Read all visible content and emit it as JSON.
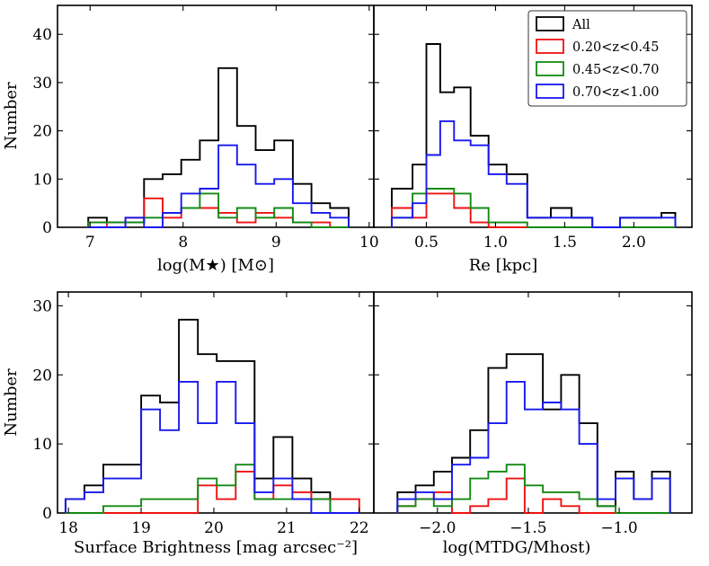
{
  "colors": {
    "All": "#000000",
    "low": "#ee1111",
    "mid": "#138a13",
    "high": "#1818ee"
  },
  "legend": [
    {
      "key": "All",
      "label": "All"
    },
    {
      "key": "low",
      "label": "0.20<z<0.45"
    },
    {
      "key": "mid",
      "label": "0.45<z<0.70"
    },
    {
      "key": "high",
      "label": "0.70<z<1.00"
    }
  ],
  "chart_data": [
    {
      "type": "histogram",
      "panel": "top-left",
      "xlabel": "log(M★) [M⊙]",
      "ylabel": "Number",
      "xlim": [
        6.65,
        10.05
      ],
      "ylim": [
        0,
        46
      ],
      "xticks": [
        7,
        8,
        9,
        10
      ],
      "yticks": [
        0,
        10,
        20,
        30,
        40
      ],
      "bin_edges": [
        6.98,
        7.18,
        7.38,
        7.58,
        7.78,
        7.98,
        8.18,
        8.38,
        8.58,
        8.78,
        8.98,
        9.18,
        9.38,
        9.58,
        9.78
      ],
      "series": [
        {
          "name": "All",
          "color_key": "All",
          "counts": [
            2,
            1,
            1,
            10,
            11,
            14,
            18,
            33,
            21,
            16,
            18,
            9,
            5,
            4
          ]
        },
        {
          "name": "0.20<z<0.45",
          "color_key": "low",
          "counts": [
            1,
            0,
            2,
            6,
            2,
            4,
            4,
            3,
            1,
            3,
            2,
            1,
            1,
            0
          ]
        },
        {
          "name": "0.45<z<0.70",
          "color_key": "mid",
          "counts": [
            1,
            1,
            1,
            2,
            3,
            4,
            7,
            2,
            4,
            2,
            4,
            1,
            0,
            0
          ]
        },
        {
          "name": "0.70<z<1.00",
          "color_key": "high",
          "counts": [
            0,
            0,
            2,
            0,
            3,
            7,
            8,
            17,
            13,
            9,
            10,
            5,
            3,
            2
          ]
        }
      ]
    },
    {
      "type": "histogram",
      "panel": "top-right",
      "xlabel": "Re [kpc]",
      "ylabel": "",
      "xlim": [
        0.12,
        2.42
      ],
      "ylim": [
        0,
        46
      ],
      "xticks": [
        0.5,
        1.0,
        1.5,
        2.0
      ],
      "xtick_labels": [
        "0.5",
        "1.0",
        "1.5",
        "2.0"
      ],
      "yticks": [
        0,
        10,
        20,
        30,
        40
      ],
      "bin_edges": [
        0.25,
        0.4,
        0.5,
        0.6,
        0.7,
        0.82,
        0.95,
        1.08,
        1.23,
        1.4,
        1.55,
        1.7,
        1.9,
        2.05,
        2.2,
        2.3
      ],
      "series": [
        {
          "name": "All",
          "color_key": "All",
          "counts": [
            8,
            13,
            38,
            28,
            29,
            19,
            13,
            11,
            2,
            4,
            2,
            0,
            2,
            2,
            3
          ]
        },
        {
          "name": "0.20<z<0.45",
          "color_key": "low",
          "counts": [
            4,
            2,
            7,
            7,
            4,
            1,
            0,
            0,
            0,
            0,
            0,
            0,
            0,
            0,
            0
          ]
        },
        {
          "name": "0.45<z<0.70",
          "color_key": "mid",
          "counts": [
            2,
            7,
            8,
            8,
            7,
            4,
            1,
            1,
            0,
            0,
            0,
            0,
            0,
            0,
            0
          ]
        },
        {
          "name": "0.70<z<1.00",
          "color_key": "high",
          "counts": [
            2,
            5,
            15,
            22,
            18,
            17,
            11,
            9,
            2,
            2,
            2,
            0,
            2,
            2,
            2
          ]
        }
      ]
    },
    {
      "type": "histogram",
      "panel": "bottom-left",
      "xlabel": "Surface Brightness [mag arcsec⁻²]",
      "ylabel": "Number",
      "xlim": [
        17.85,
        22.2
      ],
      "ylim": [
        0,
        32
      ],
      "xticks": [
        18,
        19,
        20,
        21,
        22
      ],
      "yticks": [
        0,
        10,
        20,
        30
      ],
      "bin_edges": [
        17.96,
        18.22,
        18.48,
        18.74,
        19.0,
        19.26,
        19.52,
        19.78,
        20.04,
        20.3,
        20.56,
        20.82,
        21.08,
        21.34,
        21.6,
        22.0
      ],
      "series": [
        {
          "name": "All",
          "color_key": "All",
          "counts": [
            2,
            4,
            7,
            7,
            17,
            16,
            28,
            23,
            22,
            22,
            5,
            11,
            5,
            3,
            0
          ]
        },
        {
          "name": "0.20<z<0.45",
          "color_key": "low",
          "counts": [
            0,
            0,
            0,
            0,
            0,
            0,
            0,
            4,
            2,
            6,
            2,
            4,
            3,
            2,
            2
          ]
        },
        {
          "name": "0.45<z<0.70",
          "color_key": "mid",
          "counts": [
            0,
            0,
            1,
            1,
            2,
            2,
            2,
            5,
            4,
            7,
            2,
            2,
            2,
            2,
            0
          ]
        },
        {
          "name": "0.70<z<1.00",
          "color_key": "high",
          "counts": [
            2,
            3,
            5,
            5,
            15,
            12,
            19,
            13,
            19,
            13,
            3,
            5,
            2,
            0,
            0
          ]
        }
      ]
    },
    {
      "type": "histogram",
      "panel": "bottom-right",
      "xlabel": "log(MTDG/Mhost)",
      "ylabel": "",
      "xlim": [
        -2.35,
        -0.6
      ],
      "ylim": [
        0,
        32
      ],
      "xticks": [
        -2.0,
        -1.5,
        -1.0
      ],
      "xtick_labels": [
        "−2.0",
        "−1.5",
        "−1.0"
      ],
      "yticks": [
        0,
        10,
        20,
        30
      ],
      "bin_edges": [
        -2.22,
        -2.12,
        -2.02,
        -1.92,
        -1.82,
        -1.72,
        -1.62,
        -1.52,
        -1.42,
        -1.32,
        -1.22,
        -1.12,
        -1.02,
        -0.92,
        -0.82,
        -0.72
      ],
      "series": [
        {
          "name": "All",
          "color_key": "All",
          "counts": [
            3,
            4,
            6,
            8,
            12,
            21,
            23,
            23,
            15,
            20,
            13,
            1,
            6,
            2,
            6
          ]
        },
        {
          "name": "0.20<z<0.45",
          "color_key": "low",
          "counts": [
            1,
            2,
            3,
            0,
            1,
            2,
            5,
            0,
            2,
            1,
            0,
            0,
            0,
            0,
            0
          ]
        },
        {
          "name": "0.45<z<0.70",
          "color_key": "mid",
          "counts": [
            1,
            2,
            1,
            2,
            5,
            6,
            7,
            4,
            3,
            3,
            2,
            1,
            0,
            0,
            0
          ]
        },
        {
          "name": "0.70<z<1.00",
          "color_key": "high",
          "counts": [
            2,
            3,
            2,
            7,
            8,
            13,
            19,
            15,
            16,
            15,
            10,
            2,
            5,
            2,
            5
          ]
        }
      ]
    }
  ]
}
